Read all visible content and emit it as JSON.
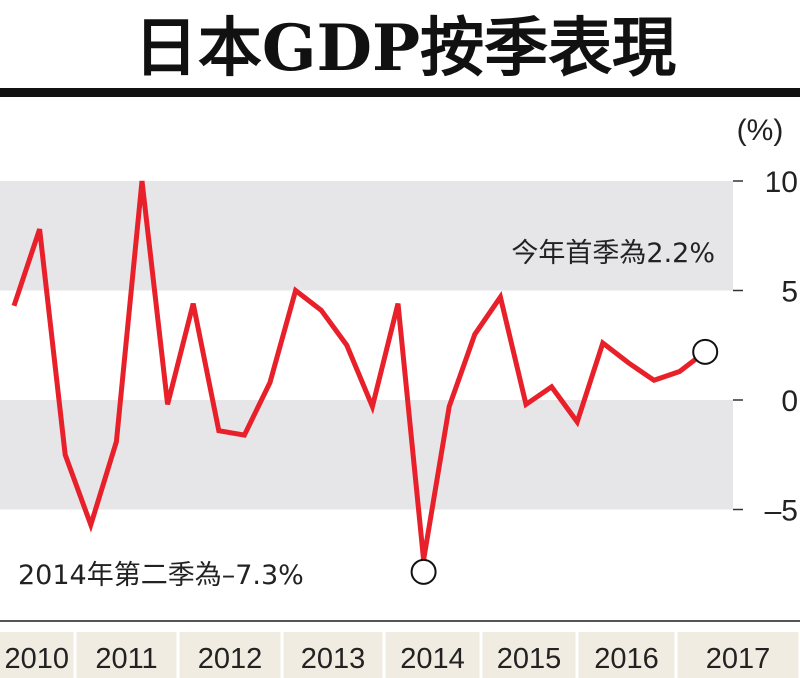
{
  "chart_data": {
    "type": "line",
    "title": "日本GDP按季表現",
    "ylabel": "(%)",
    "xlabel": "",
    "ylim": [
      -8.5,
      10.5
    ],
    "yticks": [
      10,
      5,
      0,
      -5
    ],
    "ytick_labels": [
      "10",
      "5",
      "0",
      "–5"
    ],
    "shaded_bands": [
      [
        5,
        10
      ],
      [
        -5,
        0
      ]
    ],
    "grid": false,
    "x_period": "2010Q2–2017Q1 (quarterly)",
    "years": [
      "2010",
      "2011",
      "2012",
      "2013",
      "2014",
      "2015",
      "2016",
      "2017"
    ],
    "series": [
      {
        "name": "GDP",
        "color": "#e8202a",
        "values": [
          4.3,
          7.8,
          -2.5,
          -5.7,
          -1.9,
          10.0,
          -0.2,
          4.4,
          -1.4,
          -1.6,
          0.8,
          5.0,
          4.1,
          2.5,
          -0.3,
          4.4,
          -7.3,
          -0.3,
          3.0,
          4.7,
          -0.2,
          0.6,
          -1.0,
          2.6,
          1.7,
          0.9,
          1.3,
          2.2
        ]
      }
    ],
    "annotations": [
      {
        "text": "今年首季為2.2%",
        "point_index": 27
      },
      {
        "text": "2014年第二季為–7.3%",
        "point_index": 16
      }
    ]
  },
  "colors": {
    "band": "#e6e6e8",
    "line": "#e8202a",
    "year_bar": "#f1ece2"
  }
}
